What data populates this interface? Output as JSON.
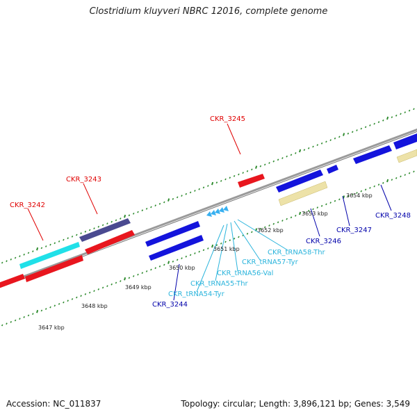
{
  "title": "Clostridium kluyveri NBRC 12016, complete genome",
  "footer": {
    "accession": "Accession: NC_011837",
    "summary": "Topology: circular; Length: 3,896,121 bp; Genes: 3,549"
  },
  "colors": {
    "backbone": "#8c8c8c",
    "tick": "#2e8b2e",
    "forward_label": "#e00000",
    "reverse_label": "#0000aa",
    "trna_label": "#2ab4dc",
    "red_feature": "#e8161e",
    "cyan_feature": "#20e0e8",
    "purple_feature": "#4a4a90",
    "blue_feature": "#1414dc",
    "tan_feature": "#ede2a8",
    "trna_feature": "#38b0f0"
  },
  "scale": {
    "labels": [
      "3647 kbp",
      "3648 kbp",
      "3649 kbp",
      "3650 kbp",
      "3651 kbp",
      "3652 kbp",
      "3653 kbp",
      "3654 kbp"
    ]
  },
  "feature_labels": {
    "forward": [
      "CKR_3242",
      "CKR_3243",
      "CKR_3245"
    ],
    "reverse": [
      "CKR_3244",
      "CKR_3246",
      "CKR_3247",
      "CKR_3248"
    ],
    "trna": [
      "CKR_tRNA54-Tyr",
      "CKR_tRNA55-Thr",
      "CKR_tRNA56-Val",
      "CKR_tRNA57-Tyr",
      "CKR_tRNA58-Thr"
    ]
  }
}
